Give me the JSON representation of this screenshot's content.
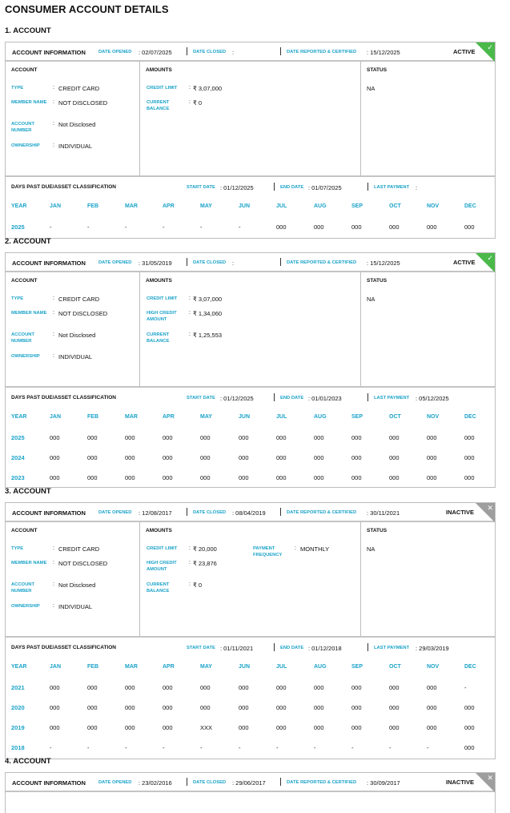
{
  "page_title": "CONSUMER ACCOUNT DETAILS",
  "labels": {
    "account_information": "ACCOUNT INFORMATION",
    "date_opened": "DATE OPENED",
    "date_closed": "DATE CLOSED",
    "date_reported": "DATE REPORTED & CERTIFIED",
    "account_col": "ACCOUNT",
    "amounts_col": "AMOUNTS",
    "status_col": "STATUS",
    "type": "TYPE",
    "member_name": "MEMBER NAME",
    "account_number": "ACCOUNT NUMBER",
    "ownership": "OWNERSHIP",
    "dpd_title": "DAYS PAST DUE/ASSET CLASSIFICATION",
    "start_date": "START DATE",
    "end_date": "END DATE",
    "last_payment": "LAST PAYMENT",
    "colon": ":",
    "months": [
      "YEAR",
      "JAN",
      "FEB",
      "MAR",
      "APR",
      "MAY",
      "JUN",
      "JUL",
      "AUG",
      "SEP",
      "OCT",
      "NOV",
      "DEC"
    ]
  },
  "accounts": [
    {
      "heading": "1. ACCOUNT",
      "date_opened": "02/07/2025",
      "date_closed": "",
      "date_reported": "15/12/2025",
      "status": "ACTIVE",
      "status_color": "#4ab94a",
      "type": "CREDIT CARD",
      "member_name": "NOT DISCLOSED",
      "account_number": "Not Disclosed",
      "ownership": "INDIVIDUAL",
      "amounts": [
        {
          "label": "CREDIT LIMIT",
          "value": "₹ 3,07,000"
        },
        {
          "label": "CURRENT BALANCE",
          "value": "₹ 0"
        }
      ],
      "extra_amount": null,
      "status_value": "NA",
      "start_date": "01/12/2025",
      "end_date": "01/07/2025",
      "last_payment": "",
      "rows": [
        [
          "2025",
          "-",
          "-",
          "-",
          "-",
          "-",
          "-",
          "000",
          "000",
          "000",
          "000",
          "000",
          "000"
        ]
      ]
    },
    {
      "heading": "2. ACCOUNT",
      "date_opened": "31/05/2019",
      "date_closed": "",
      "date_reported": "15/12/2025",
      "status": "ACTIVE",
      "status_color": "#4ab94a",
      "type": "CREDIT CARD",
      "member_name": "NOT DISCLOSED",
      "account_number": "Not Disclosed",
      "ownership": "INDIVIDUAL",
      "amounts": [
        {
          "label": "CREDIT LIMIT",
          "value": "₹ 3,07,000"
        },
        {
          "label": "HIGH CREDIT AMOUNT",
          "value": "₹ 1,34,060"
        },
        {
          "label": "CURRENT BALANCE",
          "value": "₹ 1,25,553"
        }
      ],
      "extra_amount": null,
      "status_value": "NA",
      "start_date": "01/12/2025",
      "end_date": "01/01/2023",
      "last_payment": "05/12/2025",
      "rows": [
        [
          "2025",
          "000",
          "000",
          "000",
          "000",
          "000",
          "000",
          "000",
          "000",
          "000",
          "000",
          "000",
          "000"
        ],
        [
          "2024",
          "000",
          "000",
          "000",
          "000",
          "000",
          "000",
          "000",
          "000",
          "000",
          "000",
          "000",
          "000"
        ],
        [
          "2023",
          "000",
          "000",
          "000",
          "000",
          "000",
          "000",
          "000",
          "000",
          "000",
          "000",
          "000",
          "000"
        ]
      ]
    },
    {
      "heading": "3. ACCOUNT",
      "date_opened": "12/08/2017",
      "date_closed": "08/04/2019",
      "date_reported": "30/11/2021",
      "status": "INACTIVE",
      "status_color": "#9e9e9e",
      "type": "CREDIT CARD",
      "member_name": "NOT DISCLOSED",
      "account_number": "Not Disclosed",
      "ownership": "INDIVIDUAL",
      "amounts": [
        {
          "label": "CREDIT LIMIT",
          "value": "₹ 20,000"
        },
        {
          "label": "HIGH CREDIT AMOUNT",
          "value": "₹ 23,876"
        },
        {
          "label": "CURRENT BALANCE",
          "value": "₹ 0"
        }
      ],
      "extra_amount": {
        "label": "PAYMENT FREQUENCY",
        "value": "MONTHLY"
      },
      "status_value": "NA",
      "start_date": "01/11/2021",
      "end_date": "01/12/2018",
      "last_payment": "29/03/2019",
      "rows": [
        [
          "2021",
          "000",
          "000",
          "000",
          "000",
          "000",
          "000",
          "000",
          "000",
          "000",
          "000",
          "000",
          "-"
        ],
        [
          "2020",
          "000",
          "000",
          "000",
          "000",
          "000",
          "000",
          "000",
          "000",
          "000",
          "000",
          "000",
          "000"
        ],
        [
          "2019",
          "000",
          "000",
          "000",
          "000",
          "XXX",
          "000",
          "000",
          "000",
          "000",
          "000",
          "000",
          "000"
        ],
        [
          "2018",
          "-",
          "-",
          "-",
          "-",
          "-",
          "-",
          "-",
          "-",
          "-",
          "-",
          "-",
          "000"
        ]
      ]
    },
    {
      "heading": "4. ACCOUNT",
      "date_opened": "23/02/2016",
      "date_closed": "29/06/2017",
      "date_reported": "30/09/2017",
      "status": "INACTIVE",
      "status_color": "#9e9e9e",
      "partial": true
    }
  ]
}
